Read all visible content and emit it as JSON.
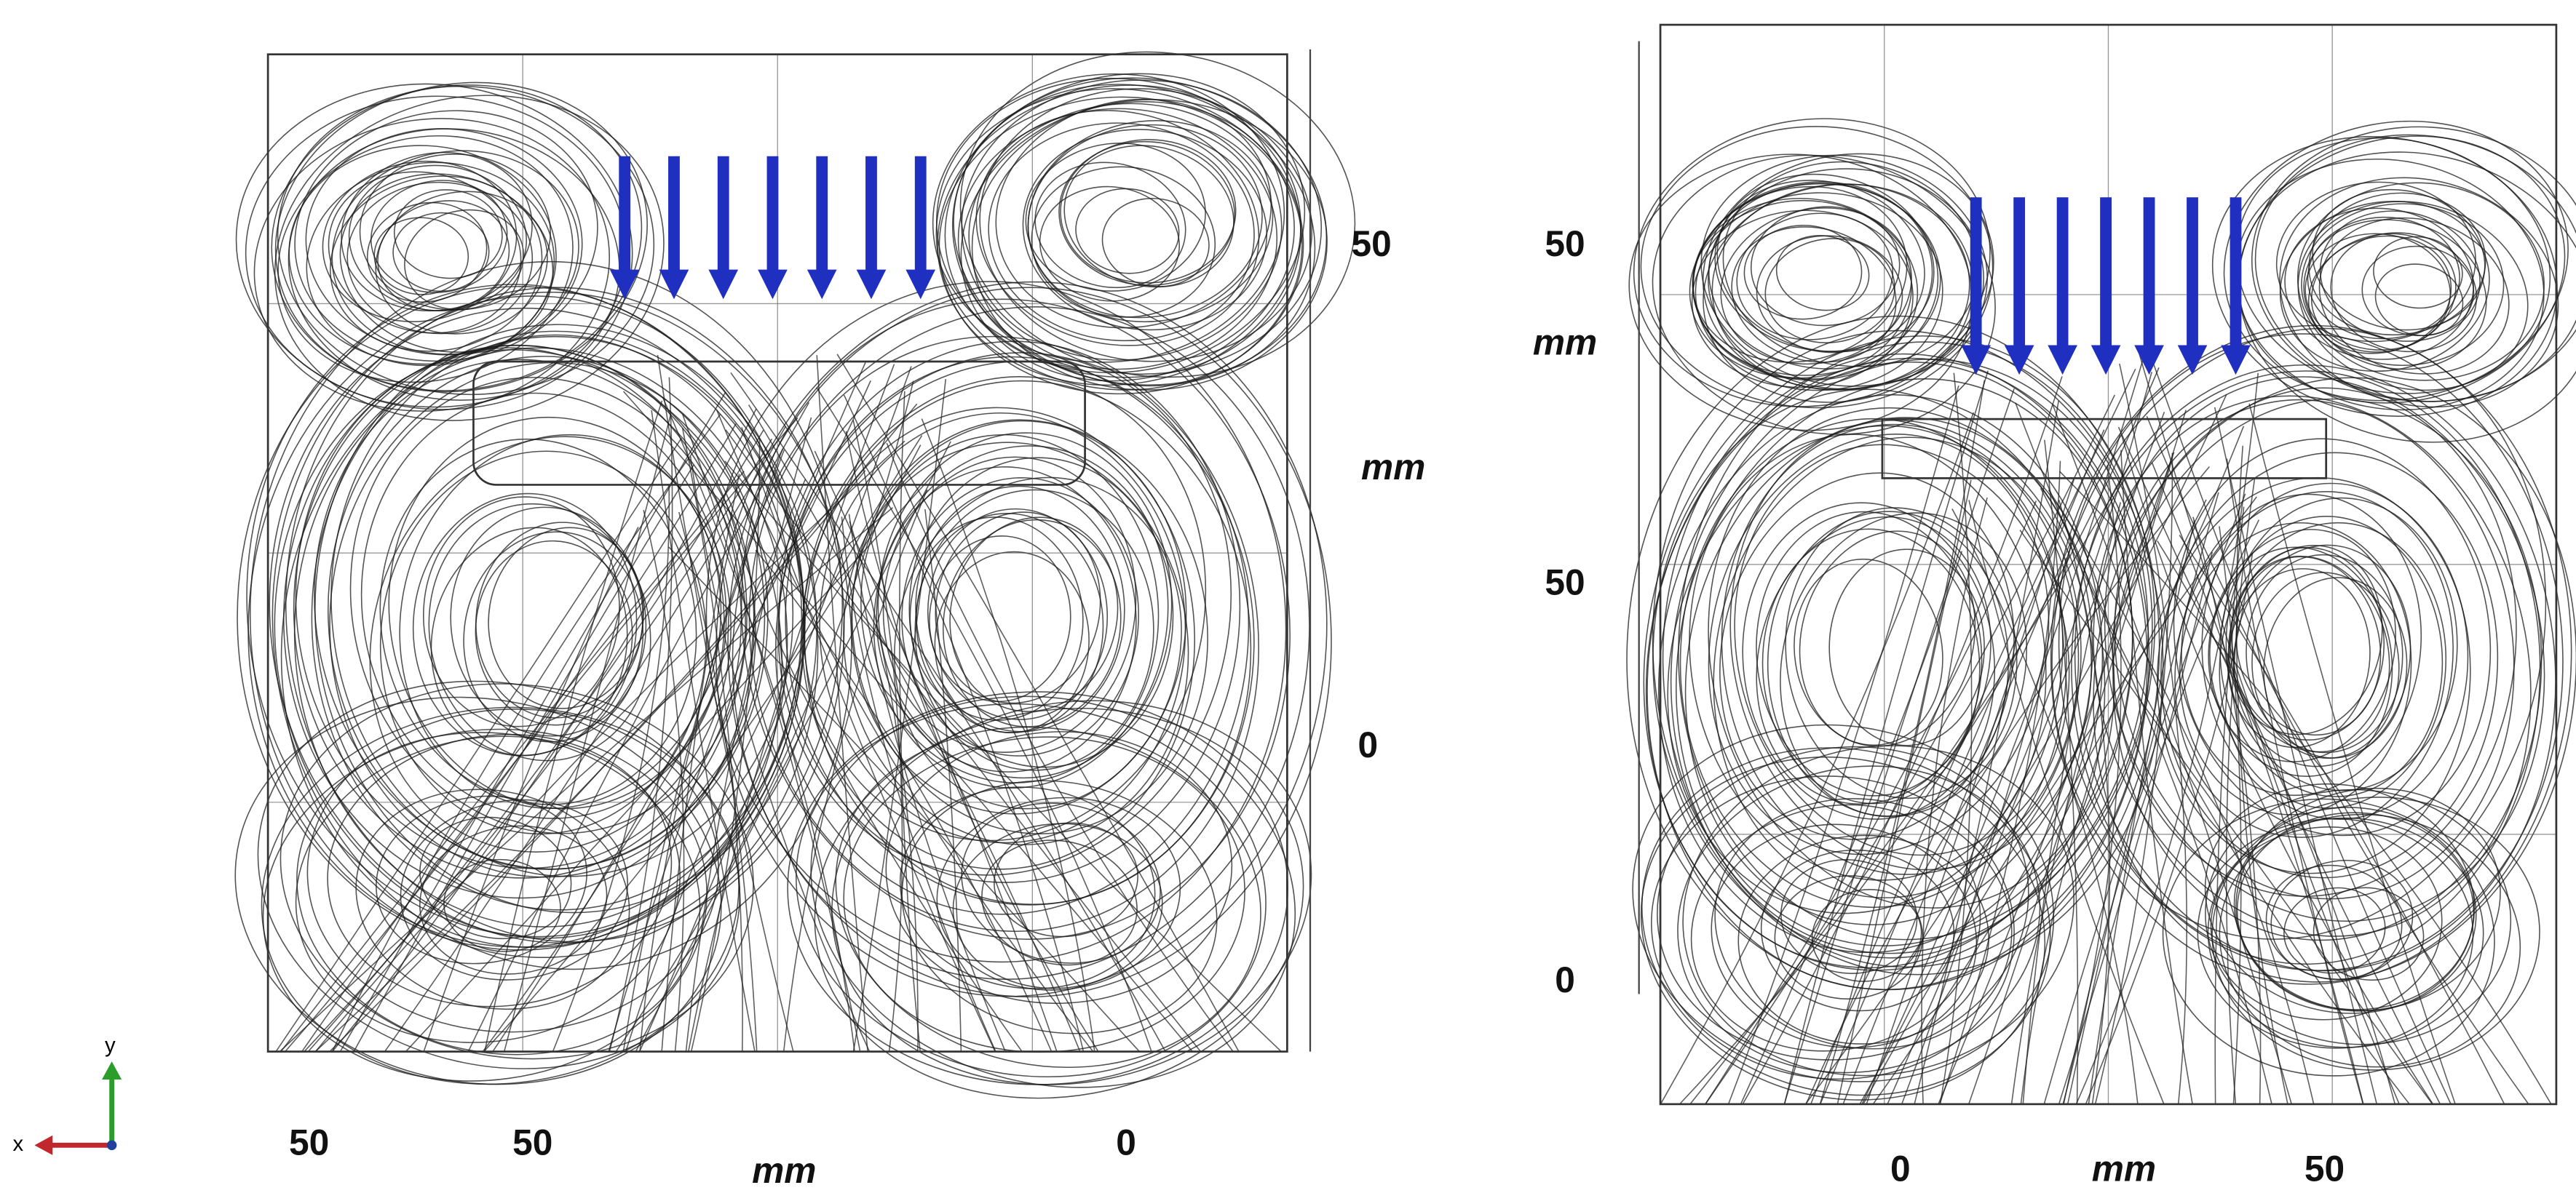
{
  "left_panel": {
    "y_axis": {
      "ticks": [
        "50",
        "0"
      ],
      "label": "mm"
    },
    "x_axis": {
      "ticks": [
        "50",
        "50",
        "0"
      ],
      "label": "mm"
    }
  },
  "right_panel": {
    "y_axis": {
      "ticks": [
        "50",
        "50",
        "0"
      ],
      "label": "mm"
    },
    "x_axis": {
      "ticks": [
        "0",
        "50"
      ],
      "label": "mm"
    }
  },
  "triad": {
    "y": "y",
    "x": "x"
  }
}
